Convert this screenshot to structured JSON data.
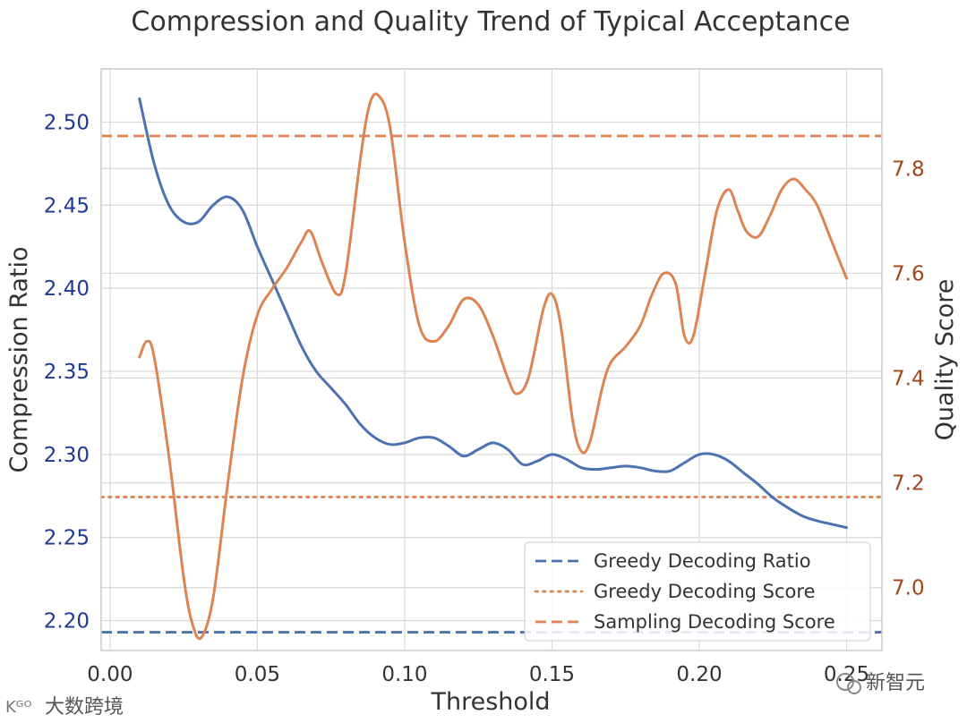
{
  "chart_data": {
    "type": "line",
    "title": "Compression and Quality Trend of Typical Acceptance",
    "xlabel": "Threshold",
    "ylabel": "Compression Ratio",
    "y2label": "Quality Score",
    "xlim": [
      -0.003,
      0.262
    ],
    "ylim": [
      2.182,
      2.532
    ],
    "y2lim": [
      6.88,
      7.99
    ],
    "xticks": [
      0.0,
      0.05,
      0.1,
      0.15,
      0.2,
      0.25
    ],
    "xtick_labels": [
      "0.00",
      "0.05",
      "0.10",
      "0.15",
      "0.20",
      "0.25"
    ],
    "yticks": [
      2.2,
      2.25,
      2.3,
      2.35,
      2.4,
      2.45,
      2.5
    ],
    "ytick_labels": [
      "2.20",
      "2.25",
      "2.30",
      "2.35",
      "2.40",
      "2.45",
      "2.50"
    ],
    "y2ticks": [
      7.0,
      7.2,
      7.4,
      7.6,
      7.8
    ],
    "y2tick_labels": [
      "7.0",
      "7.2",
      "7.4",
      "7.6",
      "7.8"
    ],
    "grid": true,
    "legend_position": "bottom-right",
    "series": [
      {
        "name": "Compression Ratio",
        "axis": "left",
        "color": "#4c72b0",
        "x": [
          0.01,
          0.015,
          0.02,
          0.025,
          0.03,
          0.035,
          0.04,
          0.045,
          0.05,
          0.055,
          0.06,
          0.065,
          0.07,
          0.075,
          0.08,
          0.085,
          0.09,
          0.095,
          0.1,
          0.105,
          0.11,
          0.115,
          0.12,
          0.125,
          0.13,
          0.135,
          0.14,
          0.145,
          0.15,
          0.155,
          0.16,
          0.165,
          0.17,
          0.175,
          0.18,
          0.185,
          0.19,
          0.195,
          0.2,
          0.205,
          0.21,
          0.215,
          0.22,
          0.225,
          0.23,
          0.235,
          0.24,
          0.245,
          0.25
        ],
        "values": [
          2.514,
          2.475,
          2.45,
          2.44,
          2.44,
          2.45,
          2.455,
          2.447,
          2.425,
          2.405,
          2.385,
          2.365,
          2.35,
          2.34,
          2.33,
          2.318,
          2.31,
          2.306,
          2.307,
          2.31,
          2.31,
          2.305,
          2.299,
          2.303,
          2.307,
          2.303,
          2.294,
          2.296,
          2.3,
          2.297,
          2.292,
          2.291,
          2.292,
          2.293,
          2.292,
          2.29,
          2.29,
          2.295,
          2.3,
          2.3,
          2.296,
          2.289,
          2.282,
          2.274,
          2.268,
          2.263,
          2.26,
          2.258,
          2.256
        ]
      },
      {
        "name": "Quality Score",
        "axis": "right",
        "color": "#dd8452",
        "x": [
          0.01,
          0.0125,
          0.015,
          0.02,
          0.025,
          0.028,
          0.031,
          0.035,
          0.04,
          0.045,
          0.05,
          0.055,
          0.06,
          0.065,
          0.068,
          0.072,
          0.077,
          0.08,
          0.085,
          0.088,
          0.091,
          0.095,
          0.1,
          0.105,
          0.11,
          0.115,
          0.12,
          0.125,
          0.13,
          0.135,
          0.138,
          0.142,
          0.147,
          0.15,
          0.153,
          0.157,
          0.16,
          0.163,
          0.167,
          0.17,
          0.175,
          0.18,
          0.184,
          0.188,
          0.192,
          0.195,
          0.198,
          0.202,
          0.206,
          0.21,
          0.213,
          0.216,
          0.22,
          0.224,
          0.228,
          0.232,
          0.236,
          0.24,
          0.245,
          0.25
        ],
        "values": [
          7.44,
          7.47,
          7.44,
          7.25,
          7.02,
          6.93,
          6.905,
          6.98,
          7.2,
          7.4,
          7.52,
          7.57,
          7.61,
          7.66,
          7.68,
          7.62,
          7.56,
          7.6,
          7.82,
          7.92,
          7.94,
          7.88,
          7.66,
          7.5,
          7.47,
          7.5,
          7.55,
          7.54,
          7.48,
          7.4,
          7.37,
          7.4,
          7.53,
          7.56,
          7.5,
          7.32,
          7.26,
          7.28,
          7.38,
          7.43,
          7.46,
          7.5,
          7.56,
          7.6,
          7.58,
          7.48,
          7.48,
          7.6,
          7.72,
          7.76,
          7.72,
          7.68,
          7.67,
          7.71,
          7.76,
          7.78,
          7.76,
          7.73,
          7.66,
          7.59
        ]
      }
    ],
    "reference_lines": [
      {
        "name": "Greedy Decoding Ratio",
        "axis": "left",
        "value": 2.193,
        "style": "dashed",
        "color": "#4c72b0"
      },
      {
        "name": "Greedy Decoding Score",
        "axis": "right",
        "value": 7.173,
        "style": "dotted",
        "color": "#dd8452"
      },
      {
        "name": "Sampling Decoding Score",
        "axis": "right",
        "value": 7.862,
        "style": "dashed",
        "color": "#dd8452"
      }
    ],
    "legend": [
      "Greedy Decoding Ratio",
      "Greedy Decoding Score",
      "Sampling Decoding Score"
    ]
  },
  "watermarks": {
    "left": "大数跨境",
    "right": "新智元"
  },
  "colors": {
    "left_tick": "#1f3a93",
    "right_tick": "#a0461a",
    "grid": "#d9d9d9",
    "frame": "#cccccc"
  }
}
